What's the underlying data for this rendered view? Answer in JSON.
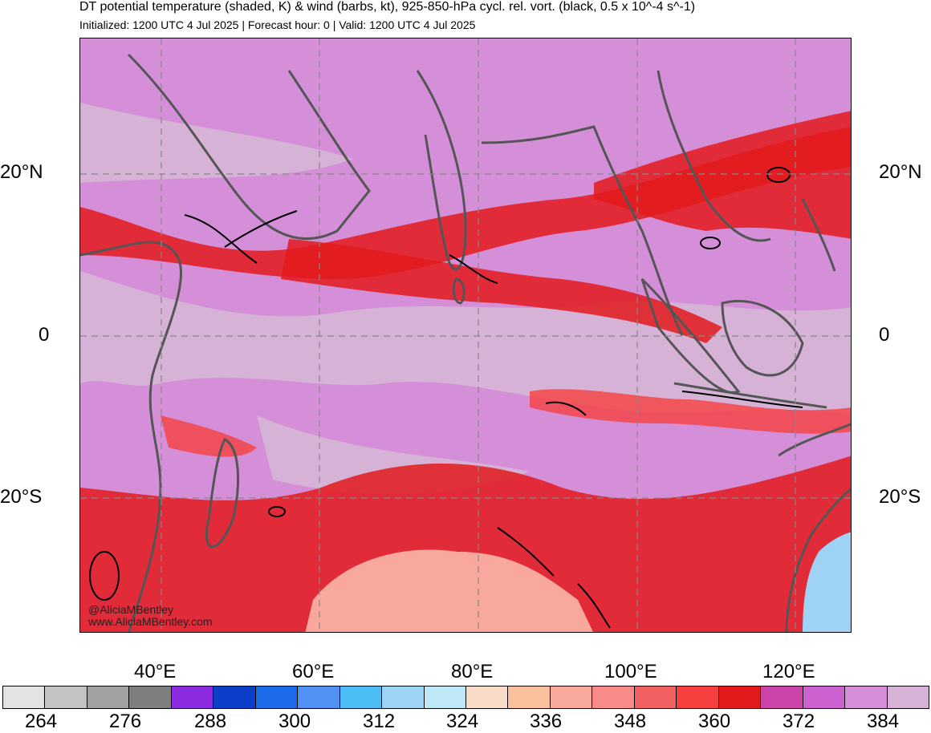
{
  "header": {
    "title": "DT potential temperature (shaded, K) & wind (barbs, kt), 925-850-hPa cycl. rel. vort. (black, 0.5 x 10^-4 s^-1)",
    "subtitle": "Initialized: 1200 UTC 4 Jul 2025 | Forecast hour: 0 | Valid: 1200 UTC 4 Jul 2025"
  },
  "axes": {
    "lat_left": [
      "20°N",
      "0",
      "20°S"
    ],
    "lat_right": [
      "20°N",
      "0",
      "20°S"
    ],
    "lon": [
      "40°E",
      "60°E",
      "80°E",
      "100°E",
      "120°E"
    ]
  },
  "credits": {
    "handle": "@AliciaMBentley",
    "site": "www.AliciaMBentley.com"
  },
  "colorbar": {
    "colors": [
      "#e3e3e3",
      "#c4c4c4",
      "#a1a1a1",
      "#7f7f7f",
      "#8b2be2",
      "#0b3ec9",
      "#1e6bea",
      "#5191f3",
      "#4cbcf5",
      "#9fd3f6",
      "#bfe8f7",
      "#f9dcc8",
      "#fbc09d",
      "#f9a89d",
      "#f98a8a",
      "#f26062",
      "#f5403f",
      "#e31a1c",
      "#cc44aa",
      "#cc62d0",
      "#d58fd8",
      "#d5b2d6"
    ],
    "labels": [
      "264",
      "276",
      "288",
      "300",
      "312",
      "324",
      "336",
      "348",
      "360",
      "372",
      "384"
    ]
  },
  "map_colors": {
    "base": "#d58fd8",
    "equatorial": "#d5b2d6",
    "warm": "#e31a1c",
    "warmer": "#f5403f",
    "south_warm": "#f9a89d",
    "cool": "#9fd3f6",
    "land": "#555555",
    "contour": "#000000",
    "grid": "#888888"
  }
}
